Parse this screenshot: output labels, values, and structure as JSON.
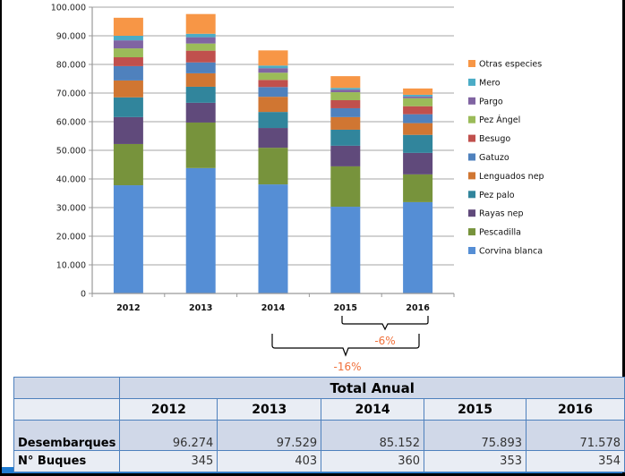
{
  "chart_data": {
    "type": "bar",
    "stacked": true,
    "title": "",
    "xlabel": "",
    "ylabel": "",
    "ylim": [
      0,
      100000
    ],
    "yticks": [
      0,
      10000,
      20000,
      30000,
      40000,
      50000,
      60000,
      70000,
      80000,
      90000,
      100000
    ],
    "ytick_labels": [
      "0",
      "10.000",
      "20.000",
      "30.000",
      "40.000",
      "50.000",
      "60.000",
      "70.000",
      "80.000",
      "90.000",
      "100.000"
    ],
    "grid": true,
    "legend_position": "right",
    "categories": [
      "2012",
      "2013",
      "2014",
      "2015",
      "2016"
    ],
    "series": [
      {
        "name": "Corvina blanca",
        "color": "#558ed5",
        "values": [
          37800,
          43800,
          38100,
          30300,
          31900
        ]
      },
      {
        "name": "Pescadilla",
        "color": "#77933c",
        "values": [
          14400,
          15900,
          12800,
          14100,
          9700
        ]
      },
      {
        "name": "Rayas nep",
        "color": "#604a7b",
        "values": [
          9400,
          6900,
          6900,
          7200,
          7500
        ]
      },
      {
        "name": "Pez palo",
        "color": "#31859c",
        "values": [
          6900,
          5600,
          5600,
          5600,
          6300
        ]
      },
      {
        "name": "Lenguados nep",
        "color": "#d07632",
        "values": [
          5900,
          4700,
          5300,
          4400,
          4100
        ]
      },
      {
        "name": "Gatuzo",
        "color": "#4f81bd",
        "values": [
          5000,
          3800,
          3400,
          3100,
          3100
        ]
      },
      {
        "name": "Besugo",
        "color": "#c0504d",
        "values": [
          3100,
          4100,
          2500,
          2800,
          2800
        ]
      },
      {
        "name": "Pez Ángel",
        "color": "#9bbb59",
        "values": [
          3100,
          2500,
          2500,
          2800,
          2800
        ]
      },
      {
        "name": "Pargo",
        "color": "#8064a2",
        "values": [
          2800,
          2200,
          1600,
          900,
          600
        ]
      },
      {
        "name": "Mero",
        "color": "#4bacc6",
        "values": [
          1600,
          1200,
          900,
          600,
          600
        ]
      },
      {
        "name": "Otras especies",
        "color": "#f79646",
        "values": [
          6300,
          6900,
          5300,
          4100,
          2200
        ]
      }
    ],
    "annotations": [
      {
        "text": "-6%",
        "from": "2015",
        "to": "2016"
      },
      {
        "text": "-16%",
        "from": "2014",
        "to": "2016"
      }
    ]
  },
  "table": {
    "title": "Total Anual",
    "years": [
      "2012",
      "2013",
      "2014",
      "2015",
      "2016"
    ],
    "rows": [
      {
        "label": "Desembarques",
        "values": [
          "96.274",
          "97.529",
          "85.152",
          "75.893",
          "71.578"
        ]
      },
      {
        "label": "N° Buques",
        "values": [
          "345",
          "403",
          "360",
          "353",
          "354"
        ]
      }
    ]
  }
}
